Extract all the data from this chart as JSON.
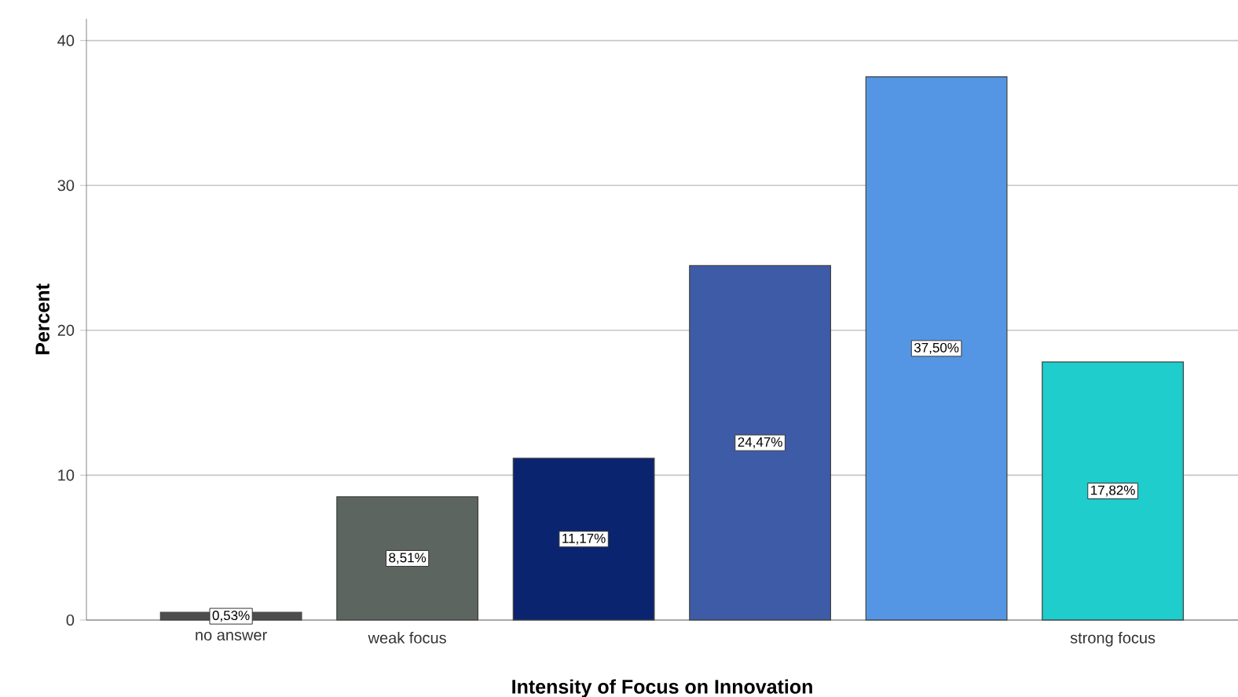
{
  "chart_data": {
    "type": "bar",
    "xlabel": "Intensity of Focus on Innovation",
    "ylabel": "Percent",
    "categories": [
      "no answer",
      "weak focus",
      null,
      null,
      null,
      "strong focus"
    ],
    "values": [
      0.53,
      8.51,
      11.17,
      24.47,
      37.5,
      17.82
    ],
    "value_labels": [
      "0,53%",
      "8,51%",
      "11,17%",
      "24,47%",
      "37,50%",
      "17,82%"
    ],
    "colors": [
      "#4d4d4d",
      "#5c6560",
      "#0b2470",
      "#3e5ba8",
      "#5596e4",
      "#1ecdcc"
    ],
    "ylim": [
      0,
      41.5
    ],
    "yticks": [
      0,
      10,
      20,
      30,
      40
    ],
    "grid": "y"
  }
}
